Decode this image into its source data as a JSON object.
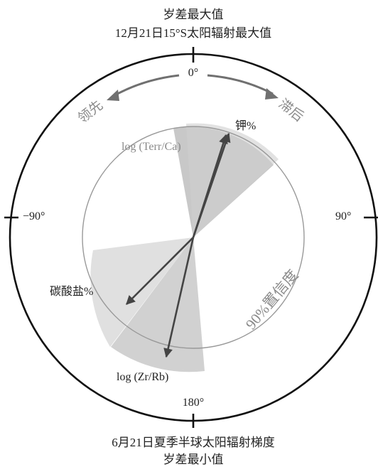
{
  "top": {
    "line1": "岁差最大值",
    "line2": "12月21日15°S太阳辐射最大值"
  },
  "bottom": {
    "line1": "6月21日夏季半球太阳辐射梯度",
    "line2": "岁差最小值"
  },
  "axis": {
    "top": "0°",
    "left": "−90°",
    "right": "90°",
    "bottom": "180°"
  },
  "direction": {
    "lead": "领先",
    "lag": "滞后"
  },
  "confidence_label": "90%置信度",
  "vectors": [
    {
      "label": "钾%",
      "phase_deg": 12,
      "magnitude": 0.72
    },
    {
      "label": "log (Terr/Ca)",
      "phase_deg": 10,
      "magnitude": 0.7
    },
    {
      "label": "碳酸盐%",
      "phase_deg": -149,
      "magnitude": 0.63
    },
    {
      "label": "log (Zr/Rb)",
      "phase_deg": -170,
      "magnitude": 0.68
    }
  ],
  "colors": {
    "wedge_dark": "#b5b5b5",
    "wedge_light": "#dadada",
    "arrow": "#444444",
    "circle": "#999999"
  }
}
